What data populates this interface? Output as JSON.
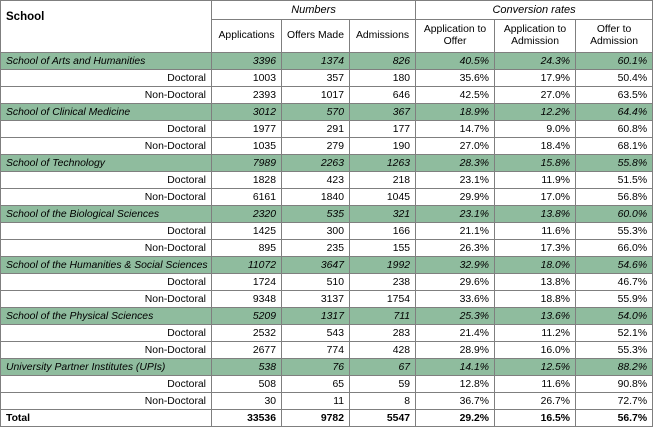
{
  "header": {
    "school": "School",
    "numbers": "Numbers",
    "conversion_rates": "Conversion rates",
    "columns": [
      "Applications",
      "Offers Made",
      "Admissions",
      "Application to Offer",
      "Application to Admission",
      "Offer to Admission"
    ]
  },
  "rows": [
    {
      "kind": "school",
      "label": "School of Arts and Humanities",
      "values": [
        "3396",
        "1374",
        "826",
        "40.5%",
        "24.3%",
        "60.1%"
      ]
    },
    {
      "kind": "sub",
      "label": "Doctoral",
      "values": [
        "1003",
        "357",
        "180",
        "35.6%",
        "17.9%",
        "50.4%"
      ]
    },
    {
      "kind": "sub",
      "label": "Non-Doctoral",
      "values": [
        "2393",
        "1017",
        "646",
        "42.5%",
        "27.0%",
        "63.5%"
      ]
    },
    {
      "kind": "school",
      "label": "School of Clinical Medicine",
      "values": [
        "3012",
        "570",
        "367",
        "18.9%",
        "12.2%",
        "64.4%"
      ]
    },
    {
      "kind": "sub",
      "label": "Doctoral",
      "values": [
        "1977",
        "291",
        "177",
        "14.7%",
        "9.0%",
        "60.8%"
      ]
    },
    {
      "kind": "sub",
      "label": "Non-Doctoral",
      "values": [
        "1035",
        "279",
        "190",
        "27.0%",
        "18.4%",
        "68.1%"
      ]
    },
    {
      "kind": "school",
      "label": "School of Technology",
      "values": [
        "7989",
        "2263",
        "1263",
        "28.3%",
        "15.8%",
        "55.8%"
      ]
    },
    {
      "kind": "sub",
      "label": "Doctoral",
      "values": [
        "1828",
        "423",
        "218",
        "23.1%",
        "11.9%",
        "51.5%"
      ]
    },
    {
      "kind": "sub",
      "label": "Non-Doctoral",
      "values": [
        "6161",
        "1840",
        "1045",
        "29.9%",
        "17.0%",
        "56.8%"
      ]
    },
    {
      "kind": "school",
      "label": "School of the Biological Sciences",
      "values": [
        "2320",
        "535",
        "321",
        "23.1%",
        "13.8%",
        "60.0%"
      ]
    },
    {
      "kind": "sub",
      "label": "Doctoral",
      "values": [
        "1425",
        "300",
        "166",
        "21.1%",
        "11.6%",
        "55.3%"
      ]
    },
    {
      "kind": "sub",
      "label": "Non-Doctoral",
      "values": [
        "895",
        "235",
        "155",
        "26.3%",
        "17.3%",
        "66.0%"
      ]
    },
    {
      "kind": "school",
      "label": "School of the Humanities & Social Sciences",
      "values": [
        "11072",
        "3647",
        "1992",
        "32.9%",
        "18.0%",
        "54.6%"
      ]
    },
    {
      "kind": "sub",
      "label": "Doctoral",
      "values": [
        "1724",
        "510",
        "238",
        "29.6%",
        "13.8%",
        "46.7%"
      ]
    },
    {
      "kind": "sub",
      "label": "Non-Doctoral",
      "values": [
        "9348",
        "3137",
        "1754",
        "33.6%",
        "18.8%",
        "55.9%"
      ]
    },
    {
      "kind": "school",
      "label": "School of the Physical Sciences",
      "values": [
        "5209",
        "1317",
        "711",
        "25.3%",
        "13.6%",
        "54.0%"
      ]
    },
    {
      "kind": "sub",
      "label": "Doctoral",
      "values": [
        "2532",
        "543",
        "283",
        "21.4%",
        "11.2%",
        "52.1%"
      ]
    },
    {
      "kind": "sub",
      "label": "Non-Doctoral",
      "values": [
        "2677",
        "774",
        "428",
        "28.9%",
        "16.0%",
        "55.3%"
      ]
    },
    {
      "kind": "school",
      "label": "University Partner Institutes (UPIs)",
      "values": [
        "538",
        "76",
        "67",
        "14.1%",
        "12.5%",
        "88.2%"
      ]
    },
    {
      "kind": "sub",
      "label": "Doctoral",
      "values": [
        "508",
        "65",
        "59",
        "12.8%",
        "11.6%",
        "90.8%"
      ]
    },
    {
      "kind": "sub",
      "label": "Non-Doctoral",
      "values": [
        "30",
        "11",
        "8",
        "36.7%",
        "26.7%",
        "72.7%"
      ]
    },
    {
      "kind": "total",
      "label": "Total",
      "values": [
        "33536",
        "9782",
        "5547",
        "29.2%",
        "16.5%",
        "56.7%"
      ]
    }
  ],
  "colors": {
    "school_row_fill": "#8fbc9e",
    "border": "#7f7f7f"
  }
}
